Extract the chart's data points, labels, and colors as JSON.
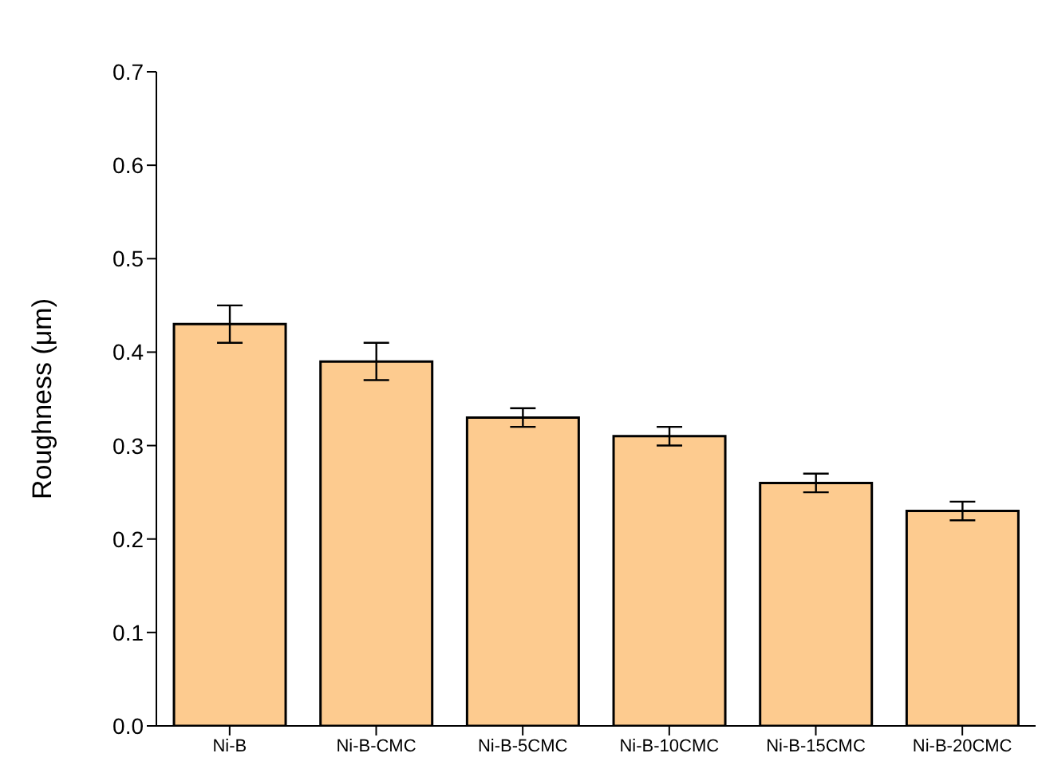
{
  "chart_data": {
    "type": "bar",
    "ylabel": "Roughness (μm)",
    "categories": [
      "Ni-B",
      "Ni-B-CMC",
      "Ni-B-5CMC",
      "Ni-B-10CMC",
      "Ni-B-15CMC",
      "Ni-B-20CMC"
    ],
    "values": [
      0.43,
      0.39,
      0.33,
      0.31,
      0.26,
      0.23
    ],
    "errors": [
      0.02,
      0.02,
      0.01,
      0.01,
      0.01,
      0.01
    ],
    "color": "#fdcb8f",
    "ylim": [
      0,
      0.7
    ],
    "yticks": [
      {
        "value": 0,
        "label": "0.0"
      },
      0.1,
      0.2,
      0.3,
      0.4,
      0.5,
      0.6,
      0.7
    ],
    "grid": false,
    "legend": false
  }
}
